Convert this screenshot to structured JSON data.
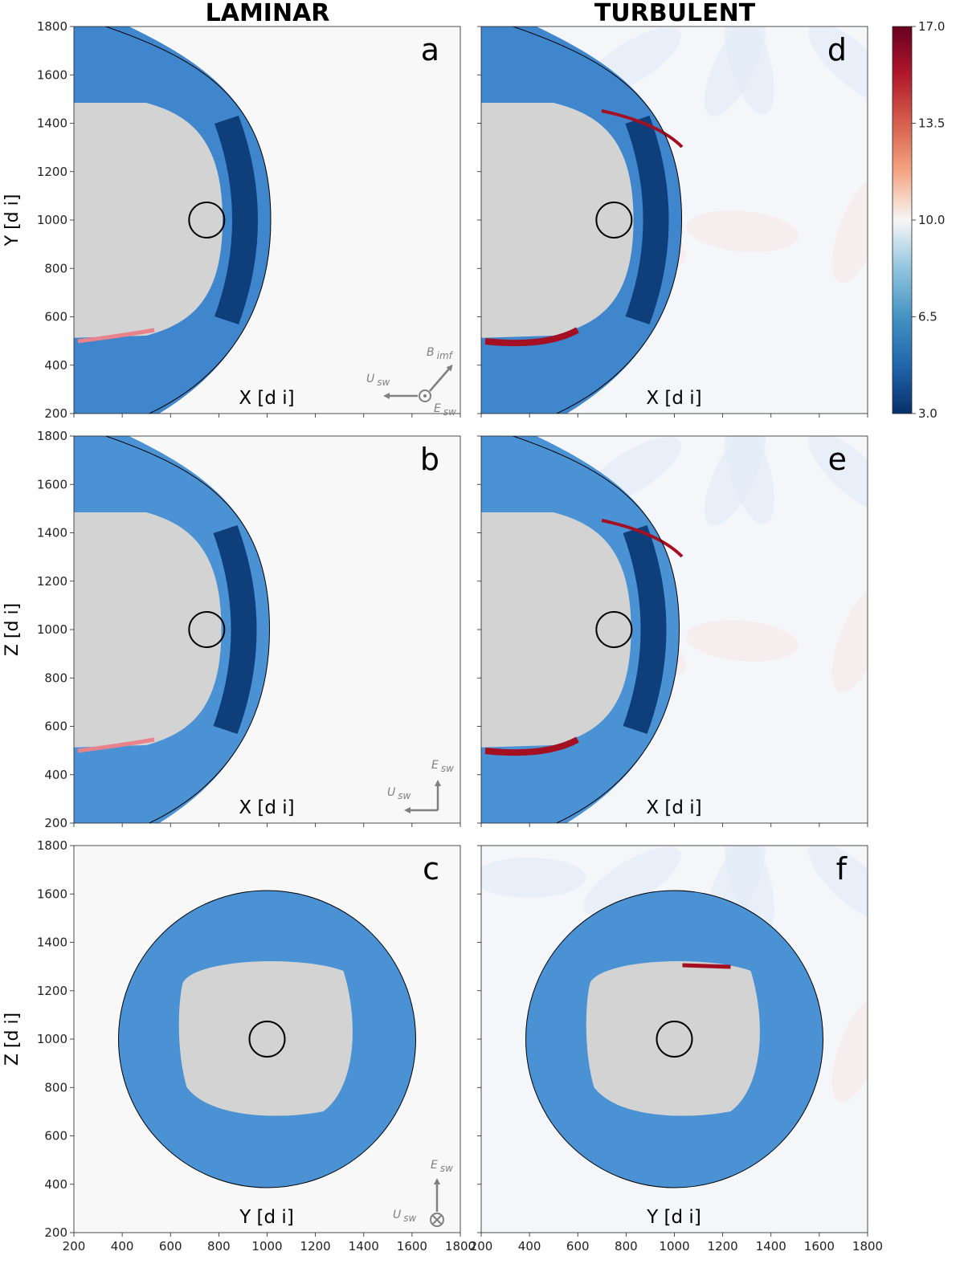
{
  "columns": [
    {
      "title": "LAMINAR"
    },
    {
      "title": "TURBULENT"
    }
  ],
  "chart_data": {
    "type": "heatmap",
    "axis_ticks": [
      200,
      400,
      600,
      800,
      1000,
      1200,
      1400,
      1600,
      1800
    ],
    "xlim": [
      200,
      1800
    ],
    "ylim": [
      200,
      1800
    ],
    "panels": [
      {
        "label": "a",
        "column": "laminar",
        "row": 0,
        "xlabel": "X [d i]",
        "ylabel": "Y [d i]",
        "view": "XY",
        "body_center": [
          750,
          1000
        ],
        "nose_x": 1015
      },
      {
        "label": "b",
        "column": "laminar",
        "row": 1,
        "xlabel": "X [d i]",
        "ylabel": "Z [d i]",
        "view": "XZ",
        "body_center": [
          750,
          1000
        ],
        "nose_x": 1010
      },
      {
        "label": "c",
        "column": "laminar",
        "row": 2,
        "xlabel": "Y [d i]",
        "ylabel": "Z [d i]",
        "view": "YZ",
        "body_center": [
          1000,
          1000
        ]
      },
      {
        "label": "d",
        "column": "turbulent",
        "row": 0,
        "xlabel": "X [d i]",
        "ylabel": "",
        "view": "XY",
        "body_center": [
          750,
          1000
        ],
        "nose_x": 1030
      },
      {
        "label": "e",
        "column": "turbulent",
        "row": 1,
        "xlabel": "X [d i]",
        "ylabel": "",
        "view": "XZ",
        "body_center": [
          750,
          1000
        ],
        "nose_x": 1020
      },
      {
        "label": "f",
        "column": "turbulent",
        "row": 2,
        "xlabel": "Y [d i]",
        "ylabel": "",
        "view": "YZ",
        "body_center": [
          1000,
          1000
        ]
      }
    ],
    "colorbar": {
      "ticks": [
        "17.0",
        "13.5",
        "10.0",
        "6.5",
        "3.0"
      ],
      "min": 3.0,
      "max": 17.0,
      "colors": [
        "#08306b",
        "#2166ac",
        "#4393c3",
        "#92c5de",
        "#f7f7f7",
        "#f4a582",
        "#d6604d",
        "#b2182b",
        "#67001f"
      ]
    },
    "annotations": {
      "row0": {
        "b": "B",
        "b_sub": "imf",
        "u": "U",
        "u_sub": "sw",
        "e": "E",
        "e_sub": "sw"
      },
      "row1": {
        "u": "U",
        "u_sub": "sw",
        "e": "E",
        "e_sub": "sw"
      },
      "row2": {
        "u": "U",
        "u_sub": "sw",
        "e": "E",
        "e_sub": "sw"
      }
    }
  }
}
